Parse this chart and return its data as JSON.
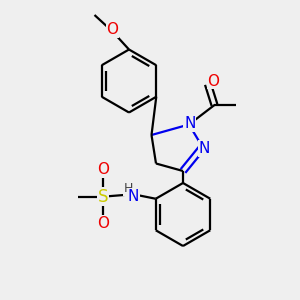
{
  "bg_color": "#efefef",
  "atom_colors": {
    "C": "#000000",
    "N": "#0000ee",
    "O": "#ee0000",
    "S": "#cccc00",
    "H": "#555555"
  },
  "line_color": "#000000",
  "line_width": 1.6,
  "font_size": 10,
  "figsize": [
    3.0,
    3.0
  ],
  "dpi": 100
}
